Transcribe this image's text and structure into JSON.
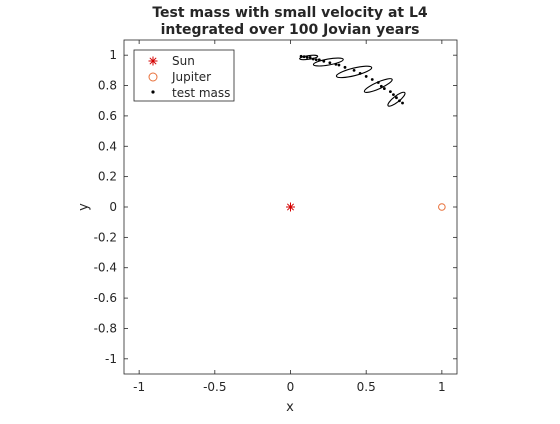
{
  "chart_data": {
    "type": "scatter",
    "title_lines": [
      "Test mass with small velocity at L4",
      "integrated over 100 Jovian years"
    ],
    "xlabel": "x",
    "ylabel": "y",
    "xlim": [
      -1.1,
      1.1
    ],
    "ylim": [
      -1.1,
      1.1
    ],
    "x_ticks": [
      -1,
      -0.5,
      0,
      0.5,
      1
    ],
    "x_tick_labels": [
      "-1",
      "-0.5",
      "0",
      "0.5",
      "1"
    ],
    "y_ticks": [
      -1,
      -0.8,
      -0.6,
      -0.4,
      -0.2,
      0,
      0.2,
      0.4,
      0.6,
      0.8,
      1
    ],
    "y_tick_labels": [
      "-1",
      "-0.8",
      "-0.6",
      "-0.4",
      "-0.2",
      "0",
      "0.2",
      "0.4",
      "0.6",
      "0.8",
      "1"
    ],
    "grid": false,
    "legend_position": "top-left",
    "series": [
      {
        "name": "Sun",
        "marker": "asterisk",
        "color": "#d40000",
        "points": [
          [
            0,
            0
          ]
        ]
      },
      {
        "name": "Jupiter",
        "marker": "circle",
        "color": "#e8703a",
        "points": [
          [
            1,
            0
          ]
        ]
      },
      {
        "name": "test mass",
        "marker": "dot",
        "color": "#000000",
        "points": [
          [
            0.07,
            0.993
          ],
          [
            0.09,
            0.99
          ],
          [
            0.11,
            0.985
          ],
          [
            0.13,
            0.985
          ],
          [
            0.15,
            0.975
          ],
          [
            0.17,
            0.97
          ],
          [
            0.19,
            0.97
          ],
          [
            0.22,
            0.96
          ],
          [
            0.26,
            0.95
          ],
          [
            0.3,
            0.94
          ],
          [
            0.32,
            0.935
          ],
          [
            0.36,
            0.92
          ],
          [
            0.42,
            0.9
          ],
          [
            0.46,
            0.88
          ],
          [
            0.5,
            0.86
          ],
          [
            0.54,
            0.84
          ],
          [
            0.58,
            0.82
          ],
          [
            0.6,
            0.795
          ],
          [
            0.62,
            0.78
          ],
          [
            0.66,
            0.76
          ],
          [
            0.68,
            0.74
          ],
          [
            0.7,
            0.72
          ],
          [
            0.72,
            0.7
          ],
          [
            0.74,
            0.685
          ]
        ]
      }
    ],
    "trajectory_loops": [
      {
        "cx": 0.12,
        "cy": 0.985,
        "rx": 0.06,
        "ry": 0.012,
        "angle": -8
      },
      {
        "cx": 0.25,
        "cy": 0.955,
        "rx": 0.1,
        "ry": 0.02,
        "angle": -10
      },
      {
        "cx": 0.42,
        "cy": 0.89,
        "rx": 0.12,
        "ry": 0.025,
        "angle": -14
      },
      {
        "cx": 0.58,
        "cy": 0.8,
        "rx": 0.1,
        "ry": 0.022,
        "angle": -24
      },
      {
        "cx": 0.7,
        "cy": 0.71,
        "rx": 0.07,
        "ry": 0.02,
        "angle": -38
      }
    ]
  }
}
